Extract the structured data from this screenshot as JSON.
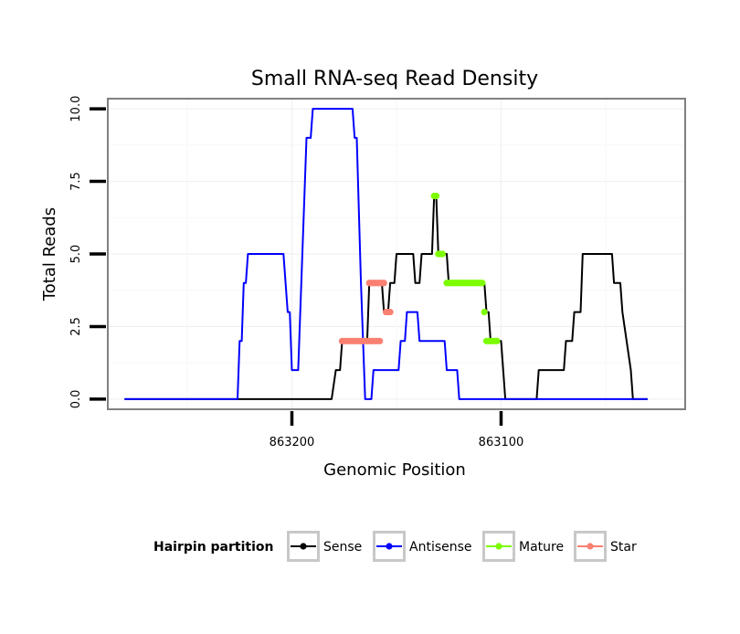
{
  "chart_data": {
    "type": "line",
    "title": "Small RNA-seq Read Density",
    "xlabel": "Genomic Position",
    "ylabel": "Total Reads",
    "x_reversed": true,
    "xlim": [
      863288,
      863012
    ],
    "ylim": [
      -0.35,
      10.35
    ],
    "x_ticks": [
      863200,
      863100
    ],
    "y_ticks": [
      0.0,
      2.5,
      5.0,
      7.5,
      10.0
    ],
    "x_tick_labels": [
      "863200",
      "863100"
    ],
    "y_tick_labels": [
      "0.0",
      "2.5",
      "5.0",
      "7.5",
      "10.0"
    ],
    "grid": true,
    "legend": {
      "title": "Hairpin partition",
      "position": "bottom",
      "entries": [
        "Sense",
        "Antisense",
        "Mature",
        "Star"
      ]
    },
    "colors": {
      "Sense": "#000000",
      "Antisense": "#0000ff",
      "Mature": "#7cfc00",
      "Star": "#fa8072"
    },
    "series": [
      {
        "name": "Sense",
        "style": "line",
        "points": [
          [
            863280,
            0
          ],
          [
            863181,
            0
          ],
          [
            863179,
            1
          ],
          [
            863177,
            1
          ],
          [
            863176,
            2
          ],
          [
            863164,
            2
          ],
          [
            863163,
            4
          ],
          [
            863157,
            4
          ],
          [
            863156,
            3
          ],
          [
            863154,
            3
          ],
          [
            863153,
            4
          ],
          [
            863151,
            4
          ],
          [
            863150,
            5
          ],
          [
            863142,
            5
          ],
          [
            863141,
            4
          ],
          [
            863139,
            4
          ],
          [
            863138,
            5
          ],
          [
            863133,
            5
          ],
          [
            863132,
            7
          ],
          [
            863131,
            7
          ],
          [
            863130,
            5
          ],
          [
            863126,
            5
          ],
          [
            863125,
            4
          ],
          [
            863108,
            4
          ],
          [
            863107,
            3
          ],
          [
            863106,
            3
          ],
          [
            863105,
            2
          ],
          [
            863100,
            2
          ],
          [
            863098,
            0
          ],
          [
            863083,
            0
          ],
          [
            863082,
            1
          ],
          [
            863070,
            1
          ],
          [
            863069,
            2
          ],
          [
            863066,
            2
          ],
          [
            863065,
            3
          ],
          [
            863062,
            3
          ],
          [
            863061,
            5
          ],
          [
            863047,
            5
          ],
          [
            863046,
            4
          ],
          [
            863043,
            4
          ],
          [
            863042,
            3
          ],
          [
            863038,
            1
          ],
          [
            863037,
            0
          ],
          [
            863030,
            0
          ]
        ]
      },
      {
        "name": "Antisense",
        "style": "line",
        "points": [
          [
            863280,
            0
          ],
          [
            863226,
            0
          ],
          [
            863225,
            2
          ],
          [
            863224,
            2
          ],
          [
            863223,
            4
          ],
          [
            863222,
            4
          ],
          [
            863221,
            5
          ],
          [
            863204,
            5
          ],
          [
            863203,
            4
          ],
          [
            863202,
            3
          ],
          [
            863201,
            3
          ],
          [
            863200,
            1
          ],
          [
            863197,
            1
          ],
          [
            863193,
            9
          ],
          [
            863191,
            9
          ],
          [
            863190,
            10
          ],
          [
            863171,
            10
          ],
          [
            863170,
            9
          ],
          [
            863169,
            9
          ],
          [
            863167,
            4
          ],
          [
            863165,
            0
          ],
          [
            863162,
            0
          ],
          [
            863161,
            1
          ],
          [
            863149,
            1
          ],
          [
            863148,
            2
          ],
          [
            863146,
            2
          ],
          [
            863145,
            3
          ],
          [
            863140,
            3
          ],
          [
            863139,
            2
          ],
          [
            863127,
            2
          ],
          [
            863126,
            1
          ],
          [
            863121,
            1
          ],
          [
            863120,
            0
          ],
          [
            863030,
            0
          ]
        ]
      },
      {
        "name": "Mature",
        "style": "points",
        "points": [
          [
            863132,
            7
          ],
          [
            863131,
            7
          ],
          [
            863130,
            5
          ],
          [
            863129,
            5
          ],
          [
            863128,
            5
          ],
          [
            863126,
            4
          ],
          [
            863125,
            4
          ],
          [
            863124,
            4
          ],
          [
            863123,
            4
          ],
          [
            863122,
            4
          ],
          [
            863121,
            4
          ],
          [
            863120,
            4
          ],
          [
            863119,
            4
          ],
          [
            863118,
            4
          ],
          [
            863117,
            4
          ],
          [
            863116,
            4
          ],
          [
            863115,
            4
          ],
          [
            863114,
            4
          ],
          [
            863113,
            4
          ],
          [
            863112,
            4
          ],
          [
            863111,
            4
          ],
          [
            863110,
            4
          ],
          [
            863109,
            4
          ],
          [
            863108,
            3
          ],
          [
            863107,
            2
          ],
          [
            863106,
            2
          ],
          [
            863105,
            2
          ],
          [
            863104,
            2
          ],
          [
            863103,
            2
          ],
          [
            863102,
            2
          ]
        ]
      },
      {
        "name": "Star",
        "style": "points",
        "points": [
          [
            863176,
            2
          ],
          [
            863175,
            2
          ],
          [
            863174,
            2
          ],
          [
            863173,
            2
          ],
          [
            863172,
            2
          ],
          [
            863171,
            2
          ],
          [
            863170,
            2
          ],
          [
            863169,
            2
          ],
          [
            863168,
            2
          ],
          [
            863167,
            2
          ],
          [
            863166,
            2
          ],
          [
            863165,
            2
          ],
          [
            863164,
            2
          ],
          [
            863163,
            2
          ],
          [
            863162,
            2
          ],
          [
            863161,
            2
          ],
          [
            863160,
            2
          ],
          [
            863159,
            2
          ],
          [
            863158,
            2
          ],
          [
            863163,
            4
          ],
          [
            863162,
            4
          ],
          [
            863161,
            4
          ],
          [
            863160,
            4
          ],
          [
            863159,
            4
          ],
          [
            863158,
            4
          ],
          [
            863157,
            4
          ],
          [
            863156,
            4
          ],
          [
            863155,
            3
          ],
          [
            863154,
            3
          ],
          [
            863153,
            3
          ]
        ]
      }
    ]
  }
}
